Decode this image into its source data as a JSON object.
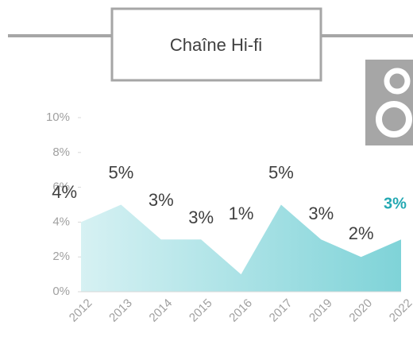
{
  "chart_data": {
    "type": "area",
    "title": "Chaîne Hi-fi",
    "categories": [
      "2012",
      "2013",
      "2014",
      "2015",
      "2016",
      "2017",
      "2019",
      "2020",
      "2022"
    ],
    "values": [
      4,
      5,
      3,
      3,
      1,
      5,
      3,
      2,
      3
    ],
    "value_labels": [
      "4%",
      "5%",
      "3%",
      "3%",
      "1%",
      "5%",
      "3%",
      "2%",
      "3%"
    ],
    "color": "#7fd3d8",
    "ylim": [
      0,
      10
    ],
    "yticks": [
      {
        "value": 0,
        "label": "0%"
      },
      {
        "value": 2,
        "label": "2%"
      },
      {
        "value": 4,
        "label": "4%"
      },
      {
        "value": 6,
        "label": "6%"
      },
      {
        "value": 8,
        "label": "8%"
      },
      {
        "value": 10,
        "label": "10%"
      }
    ]
  }
}
